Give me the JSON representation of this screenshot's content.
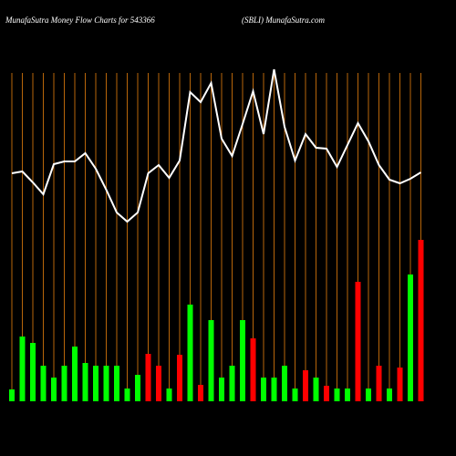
{
  "chart_data": {
    "type": "bar",
    "title": "MunafaSutra  Money Flow  Charts for 543366",
    "subtitle": "(SBLI) MunafaSutra.com",
    "categories": [
      null,
      null,
      null,
      null,
      null,
      null,
      null,
      null,
      null,
      null,
      null,
      null,
      null,
      null,
      null,
      null,
      null,
      null,
      null,
      null,
      null,
      null,
      null,
      null,
      null,
      null,
      null,
      null,
      null,
      null,
      null,
      null,
      null,
      null,
      null,
      null,
      null,
      null,
      null,
      null
    ],
    "values": [
      13,
      71,
      64,
      39,
      26,
      39,
      60,
      42,
      39,
      39,
      39,
      14,
      29,
      52,
      39,
      14,
      51,
      106,
      18,
      89,
      26,
      39,
      89,
      69,
      26,
      26,
      39,
      14,
      34,
      26,
      17,
      14,
      14,
      131,
      14,
      39,
      14,
      37,
      139,
      177
    ],
    "colors": [
      "#00ff00",
      "#00ff00",
      "#00ff00",
      "#00ff00",
      "#00ff00",
      "#00ff00",
      "#00ff00",
      "#00ff00",
      "#00ff00",
      "#00ff00",
      "#00ff00",
      "#00ff00",
      "#00ff00",
      "#ff0000",
      "#ff0000",
      "#00ff00",
      "#ff0000",
      "#00ff00",
      "#ff0000",
      "#00ff00",
      "#00ff00",
      "#00ff00",
      "#00ff00",
      "#ff0000",
      "#00ff00",
      "#00ff00",
      "#00ff00",
      "#00ff00",
      "#ff0000",
      "#00ff00",
      "#ff0000",
      "#00ff00",
      "#00ff00",
      "#ff0000",
      "#00ff00",
      "#ff0000",
      "#00ff00",
      "#ff0000",
      "#00ff00",
      "#ff0000"
    ],
    "line_values": [
      250,
      252,
      240,
      227,
      260,
      263,
      263,
      272,
      255,
      232,
      207,
      197,
      207,
      250,
      259,
      245,
      264,
      339,
      328,
      349,
      288,
      269,
      304,
      340,
      293,
      364,
      301,
      264,
      293,
      278,
      277,
      257,
      281,
      305,
      285,
      259,
      243,
      239,
      244,
      251
    ],
    "line_color": "#ffffff",
    "grid_color": "#b8660a",
    "ylim": [
      0,
      440
    ]
  }
}
